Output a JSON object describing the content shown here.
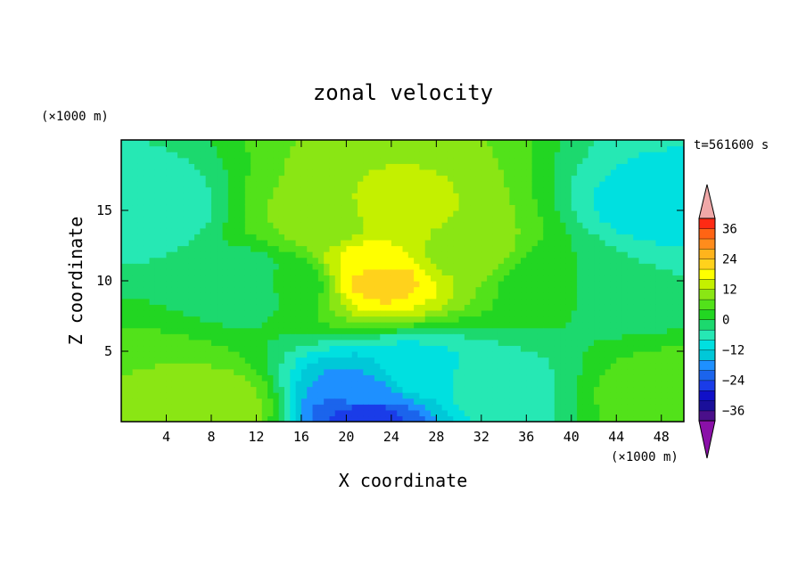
{
  "chart_data": {
    "type": "heatmap",
    "title": "zonal velocity",
    "xlabel": "X coordinate",
    "ylabel": "Z coordinate",
    "x_unit": "(×1000 m)",
    "y_unit": "(×1000 m)",
    "time_label": "t=561600 s",
    "xlim": [
      0,
      50
    ],
    "ylim": [
      0,
      20
    ],
    "x_ticks": [
      4,
      8,
      12,
      16,
      20,
      24,
      28,
      32,
      36,
      40,
      44,
      48
    ],
    "y_ticks": [
      5,
      10,
      15
    ],
    "colorbar": {
      "levels": [
        -40,
        -36,
        -32,
        -28,
        -24,
        -20,
        -16,
        -12,
        -8,
        -4,
        0,
        4,
        8,
        12,
        16,
        20,
        24,
        28,
        32,
        36,
        40
      ],
      "tick_labels": [
        36,
        24,
        12,
        0,
        -12,
        -24,
        -36
      ],
      "colors": [
        "#4a0f8a",
        "#1a0f9a",
        "#1010c8",
        "#1a3ce8",
        "#1b64ec",
        "#1e90ff",
        "#00c8d8",
        "#00e0e0",
        "#26e8b4",
        "#1cd96e",
        "#22d622",
        "#52e21a",
        "#8ae614",
        "#c4f000",
        "#ffff00",
        "#ffd21c",
        "#ffb41c",
        "#ff8c1c",
        "#ff6414",
        "#ff2a14"
      ],
      "under_color": "#8a10a8",
      "over_color": "#f0a8a8"
    },
    "grid": false,
    "colorscale_note": "",
    "field": {
      "description_points": [
        {
          "x": 2,
          "z": 15,
          "u": -7
        },
        {
          "x": 4,
          "z": 2,
          "u": 8
        },
        {
          "x": 8,
          "z": 1,
          "u": 11
        },
        {
          "x": 12,
          "z": 10,
          "u": -4
        },
        {
          "x": 15,
          "z": 10,
          "u": 2
        },
        {
          "x": 18,
          "z": 14,
          "u": 9
        },
        {
          "x": 23,
          "z": 10.2,
          "u": 22
        },
        {
          "x": 22,
          "z": 11.5,
          "u": 17
        },
        {
          "x": 24,
          "z": 15,
          "u": 13
        },
        {
          "x": 30,
          "z": 12,
          "u": 11
        },
        {
          "x": 22,
          "z": 0.5,
          "u": -26
        },
        {
          "x": 22,
          "z": 2,
          "u": -18
        },
        {
          "x": 26,
          "z": 3.2,
          "u": -10
        },
        {
          "x": 33,
          "z": 2.5,
          "u": -5
        },
        {
          "x": 38,
          "z": 10,
          "u": 2
        },
        {
          "x": 44,
          "z": 10,
          "u": -4
        },
        {
          "x": 48,
          "z": 15,
          "u": -10
        },
        {
          "x": 48,
          "z": 2,
          "u": 6
        }
      ]
    }
  }
}
